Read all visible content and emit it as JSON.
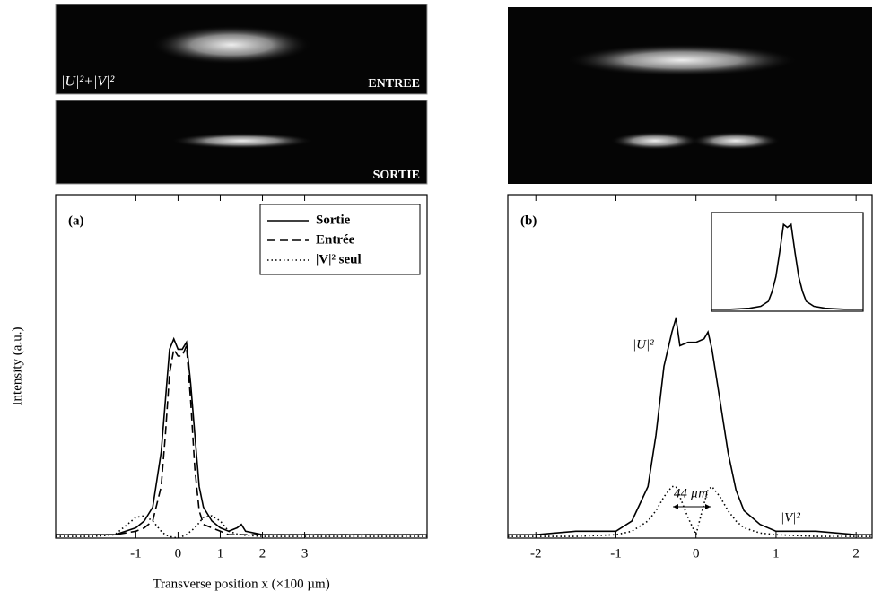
{
  "images": {
    "top_left_label": "|U|²+|V|²",
    "entree": "ENTREE",
    "sortie": "SORTIE"
  },
  "chart_data": [
    {
      "type": "line",
      "panel_label": "(a)",
      "ylabel": "Intensity (a.u.)",
      "xlabel": "Transverse position x (×100 µm)",
      "x": [
        -2.9,
        -2,
        -1.5,
        -1,
        -0.8,
        -0.6,
        -0.4,
        -0.3,
        -0.2,
        -0.1,
        0,
        0.1,
        0.2,
        0.3,
        0.4,
        0.5,
        0.6,
        0.8,
        1,
        1.2,
        1.4,
        1.5,
        1.6,
        2,
        3,
        4,
        5,
        5.9
      ],
      "xlim": [
        -2.9,
        5.9
      ],
      "xticks": [
        -1,
        0,
        1,
        2,
        3
      ],
      "ylim": [
        0,
        1
      ],
      "legend": "upper-right",
      "series": [
        {
          "name": "Sortie",
          "color": "#000000",
          "dash": "solid",
          "values": [
            0.01,
            0.01,
            0.01,
            0.03,
            0.05,
            0.09,
            0.25,
            0.4,
            0.55,
            0.58,
            0.55,
            0.55,
            0.57,
            0.45,
            0.3,
            0.15,
            0.09,
            0.05,
            0.03,
            0.02,
            0.03,
            0.04,
            0.02,
            0.01,
            0.01,
            0.01,
            0.01,
            0.01
          ]
        },
        {
          "name": "Entrée",
          "color": "#000000",
          "dash": "dashed",
          "values": [
            0.01,
            0.01,
            0.01,
            0.02,
            0.03,
            0.05,
            0.15,
            0.3,
            0.48,
            0.55,
            0.53,
            0.53,
            0.56,
            0.4,
            0.2,
            0.08,
            0.04,
            0.03,
            0.02,
            0.01,
            0.01,
            0.01,
            0.01,
            0.01,
            0.01,
            0.01,
            0.01,
            0.01
          ]
        },
        {
          "name": "|V|² seul",
          "color": "#000000",
          "dash": "dotted",
          "values": [
            0.005,
            0.005,
            0.01,
            0.06,
            0.065,
            0.05,
            0.02,
            0.01,
            0.005,
            0.002,
            0,
            0.005,
            0.01,
            0.02,
            0.03,
            0.045,
            0.06,
            0.065,
            0.05,
            0.02,
            0.012,
            0.01,
            0.008,
            0.005,
            0.005,
            0.005,
            0.005,
            0.005
          ]
        }
      ]
    },
    {
      "type": "line",
      "panel_label": "(b)",
      "x": [
        -2.35,
        -2,
        -1.5,
        -1,
        -0.8,
        -0.6,
        -0.5,
        -0.4,
        -0.3,
        -0.25,
        -0.2,
        -0.1,
        0,
        0.1,
        0.15,
        0.2,
        0.3,
        0.4,
        0.5,
        0.6,
        0.8,
        1,
        1.5,
        2,
        2.2
      ],
      "xlim": [
        -2.35,
        2.2
      ],
      "xticks": [
        -2,
        -1,
        0,
        1,
        2
      ],
      "ylim": [
        0,
        1
      ],
      "annotations": [
        "|U|²",
        "|V|²",
        "44 µm"
      ],
      "series": [
        {
          "color": "#000000",
          "dash": "solid",
          "values": [
            0.01,
            0.01,
            0.02,
            0.02,
            0.05,
            0.15,
            0.3,
            0.5,
            0.6,
            0.64,
            0.56,
            0.57,
            0.57,
            0.58,
            0.6,
            0.55,
            0.4,
            0.25,
            0.14,
            0.08,
            0.04,
            0.02,
            0.02,
            0.01,
            0.01
          ]
        },
        {
          "color": "#000000",
          "dash": "dotted",
          "values": [
            0.005,
            0.005,
            0.005,
            0.01,
            0.02,
            0.05,
            0.08,
            0.12,
            0.15,
            0.15,
            0.12,
            0.06,
            0.01,
            0.1,
            0.14,
            0.15,
            0.12,
            0.08,
            0.05,
            0.03,
            0.015,
            0.01,
            0.005,
            0.005,
            0.005
          ]
        }
      ]
    },
    {
      "type": "line",
      "x": [
        -2,
        -1.5,
        -1,
        -0.7,
        -0.5,
        -0.4,
        -0.3,
        -0.2,
        -0.1,
        0,
        0.1,
        0.2,
        0.3,
        0.4,
        0.5,
        0.7,
        1,
        1.5,
        2
      ],
      "xlim": [
        -2,
        2
      ],
      "ylim": [
        0,
        1
      ],
      "series": [
        {
          "color": "#000000",
          "dash": "solid",
          "values": [
            0.02,
            0.02,
            0.03,
            0.05,
            0.1,
            0.2,
            0.35,
            0.6,
            0.88,
            0.85,
            0.88,
            0.6,
            0.35,
            0.2,
            0.1,
            0.05,
            0.03,
            0.02,
            0.02
          ]
        }
      ]
    }
  ]
}
